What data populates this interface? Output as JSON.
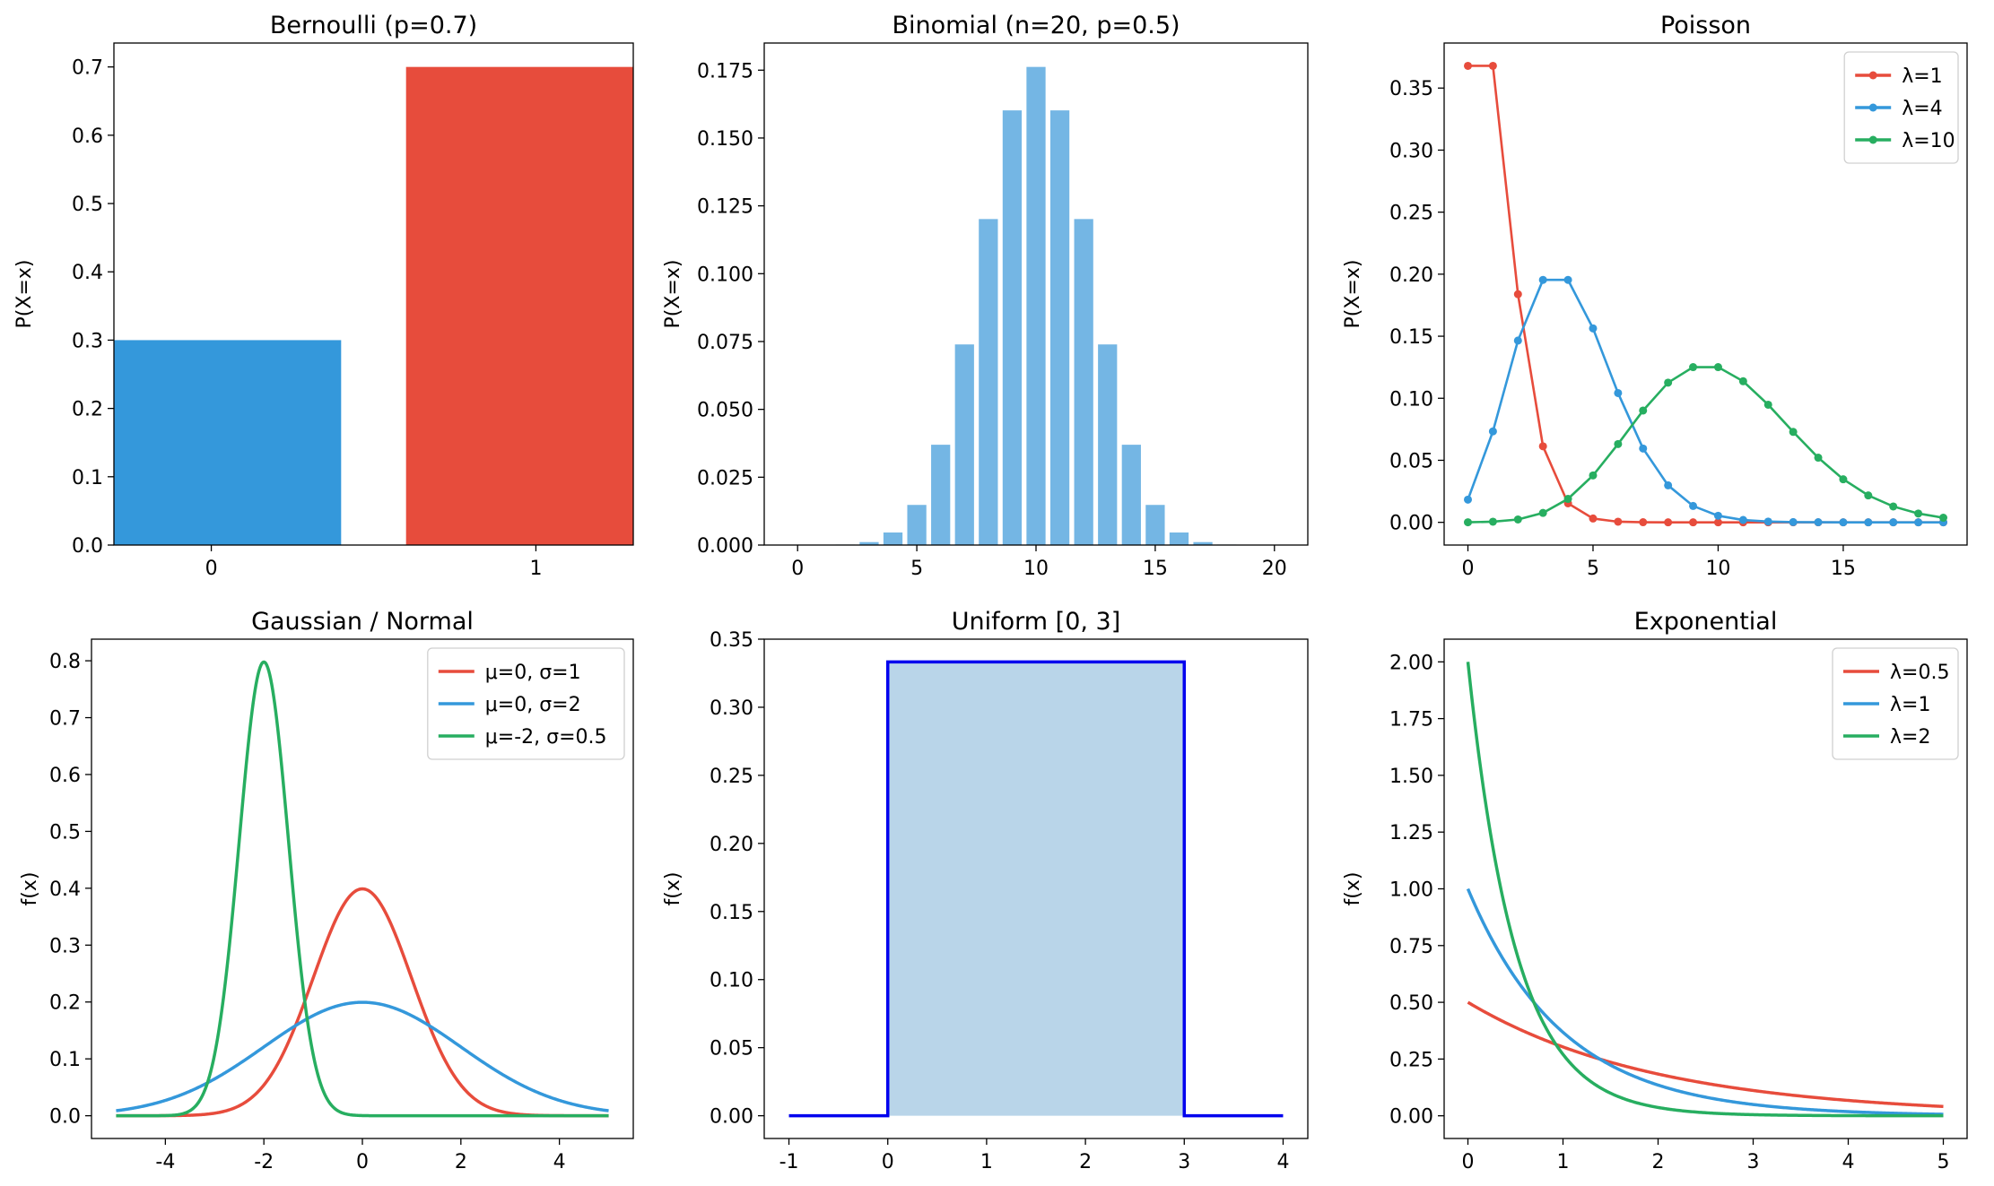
{
  "chart_data": [
    {
      "type": "bar",
      "title": "Bernoulli (p=0.7)",
      "xlabel": "",
      "ylabel": "P(X=x)",
      "categories": [
        "0",
        "1"
      ],
      "values": [
        0.3,
        0.7
      ],
      "colors": [
        "#3498db",
        "#e74c3c"
      ],
      "xlim": [
        -0.3,
        1.3
      ],
      "ylim": [
        0,
        0.735
      ],
      "xticks": [
        0,
        1
      ],
      "yticks": [
        0.0,
        0.1,
        0.2,
        0.3,
        0.4,
        0.5,
        0.6,
        0.7
      ],
      "ytick_labels": [
        "0.0",
        "0.1",
        "0.2",
        "0.3",
        "0.4",
        "0.5",
        "0.6",
        "0.7"
      ]
    },
    {
      "type": "bar",
      "title": "Binomial (n=20, p=0.5)",
      "xlabel": "",
      "ylabel": "P(X=x)",
      "x": [
        0,
        1,
        2,
        3,
        4,
        5,
        6,
        7,
        8,
        9,
        10,
        11,
        12,
        13,
        14,
        15,
        16,
        17,
        18,
        19,
        20
      ],
      "values": [
        1e-06,
        1.9e-05,
        0.000181,
        0.001087,
        0.004621,
        0.014786,
        0.036964,
        0.073929,
        0.120134,
        0.160179,
        0.176197,
        0.160179,
        0.120134,
        0.073929,
        0.036964,
        0.014786,
        0.004621,
        0.001087,
        0.000181,
        1.9e-05,
        1e-06
      ],
      "color": "#74b6e4",
      "xlim": [
        -1.4,
        21.4
      ],
      "ylim": [
        0,
        0.185
      ],
      "xticks": [
        0,
        5,
        10,
        15,
        20
      ],
      "yticks": [
        0.0,
        0.025,
        0.05,
        0.075,
        0.1,
        0.125,
        0.15,
        0.175
      ],
      "ytick_labels": [
        "0.000",
        "0.025",
        "0.050",
        "0.075",
        "0.100",
        "0.125",
        "0.150",
        "0.175"
      ]
    },
    {
      "type": "line",
      "title": "Poisson",
      "xlabel": "",
      "ylabel": "P(X=x)",
      "x": [
        0,
        1,
        2,
        3,
        4,
        5,
        6,
        7,
        8,
        9,
        10,
        11,
        12,
        13,
        14,
        15,
        16,
        17,
        18,
        19
      ],
      "series": [
        {
          "name": "λ=1",
          "color": "#e74c3c",
          "values": [
            0.3679,
            0.3679,
            0.1839,
            0.0613,
            0.0153,
            0.0031,
            0.0005,
            0.0001,
            0,
            0,
            0,
            0,
            0,
            0,
            0,
            0,
            0,
            0,
            0,
            0
          ]
        },
        {
          "name": "λ=4",
          "color": "#3498db",
          "values": [
            0.0183,
            0.0733,
            0.1465,
            0.1954,
            0.1954,
            0.1563,
            0.1042,
            0.0595,
            0.0298,
            0.0132,
            0.0053,
            0.0019,
            0.0006,
            0.0002,
            0.0001,
            0,
            0,
            0,
            0,
            0
          ]
        },
        {
          "name": "λ=10",
          "color": "#27ae60",
          "values": [
            5e-05,
            0.0005,
            0.0023,
            0.0076,
            0.0189,
            0.0378,
            0.0631,
            0.0901,
            0.1126,
            0.1251,
            0.1251,
            0.1137,
            0.0948,
            0.0729,
            0.0521,
            0.0347,
            0.0217,
            0.0128,
            0.0071,
            0.0037
          ]
        }
      ],
      "markers": true,
      "legend": "top-right",
      "xlim": [
        -0.95,
        19.95
      ],
      "ylim": [
        -0.0183,
        0.3863
      ],
      "xticks": [
        0,
        5,
        10,
        15
      ],
      "yticks": [
        0.0,
        0.05,
        0.1,
        0.15,
        0.2,
        0.25,
        0.3,
        0.35
      ],
      "ytick_labels": [
        "0.00",
        "0.05",
        "0.10",
        "0.15",
        "0.20",
        "0.25",
        "0.30",
        "0.35"
      ]
    },
    {
      "type": "line",
      "title": "Gaussian / Normal",
      "xlabel": "",
      "ylabel": "f(x)",
      "x_range": [
        -5,
        5
      ],
      "series": [
        {
          "name": "μ=0, σ=1",
          "color": "#e74c3c",
          "mu": 0,
          "sigma": 1
        },
        {
          "name": "μ=0, σ=2",
          "color": "#3498db",
          "mu": 0,
          "sigma": 2
        },
        {
          "name": "μ=-2, σ=0.5",
          "color": "#27ae60",
          "mu": -2,
          "sigma": 0.5
        }
      ],
      "legend": "top-right",
      "xlim": [
        -5.5,
        5.5
      ],
      "ylim": [
        -0.04,
        0.838
      ],
      "xticks": [
        -4,
        -2,
        0,
        2,
        4
      ],
      "xtick_labels": [
        "-4",
        "-2",
        "0",
        "2",
        "4"
      ],
      "yticks": [
        0.0,
        0.1,
        0.2,
        0.3,
        0.4,
        0.5,
        0.6,
        0.7,
        0.8
      ],
      "ytick_labels": [
        "0.0",
        "0.1",
        "0.2",
        "0.3",
        "0.4",
        "0.5",
        "0.6",
        "0.7",
        "0.8"
      ]
    },
    {
      "type": "area",
      "title": "Uniform [0, 3]",
      "xlabel": "",
      "ylabel": "f(x)",
      "x": [
        -1,
        0,
        0,
        3,
        3,
        4
      ],
      "values": [
        0,
        0,
        0.3333,
        0.3333,
        0,
        0
      ],
      "line_color": "#0000ee",
      "fill_color": "#b9d5e9",
      "xlim": [
        -1.25,
        4.25
      ],
      "ylim": [
        -0.0167,
        0.35
      ],
      "xticks": [
        -1,
        0,
        1,
        2,
        3,
        4
      ],
      "xtick_labels": [
        "-1",
        "0",
        "1",
        "2",
        "3",
        "4"
      ],
      "yticks": [
        0.0,
        0.05,
        0.1,
        0.15,
        0.2,
        0.25,
        0.3,
        0.35
      ],
      "ytick_labels": [
        "0.00",
        "0.05",
        "0.10",
        "0.15",
        "0.20",
        "0.25",
        "0.30",
        "0.35"
      ]
    },
    {
      "type": "line",
      "title": "Exponential",
      "xlabel": "",
      "ylabel": "f(x)",
      "x_range": [
        0,
        5
      ],
      "series": [
        {
          "name": "λ=0.5",
          "color": "#e74c3c",
          "lambda": 0.5
        },
        {
          "name": "λ=1",
          "color": "#3498db",
          "lambda": 1
        },
        {
          "name": "λ=2",
          "color": "#27ae60",
          "lambda": 2
        }
      ],
      "legend": "top-right",
      "xlim": [
        -0.25,
        5.25
      ],
      "ylim": [
        -0.1,
        2.1
      ],
      "xticks": [
        0,
        1,
        2,
        3,
        4,
        5
      ],
      "yticks": [
        0.0,
        0.25,
        0.5,
        0.75,
        1.0,
        1.25,
        1.5,
        1.75,
        2.0
      ],
      "ytick_labels": [
        "0.00",
        "0.25",
        "0.50",
        "0.75",
        "1.00",
        "1.25",
        "1.50",
        "1.75",
        "2.00"
      ]
    }
  ]
}
